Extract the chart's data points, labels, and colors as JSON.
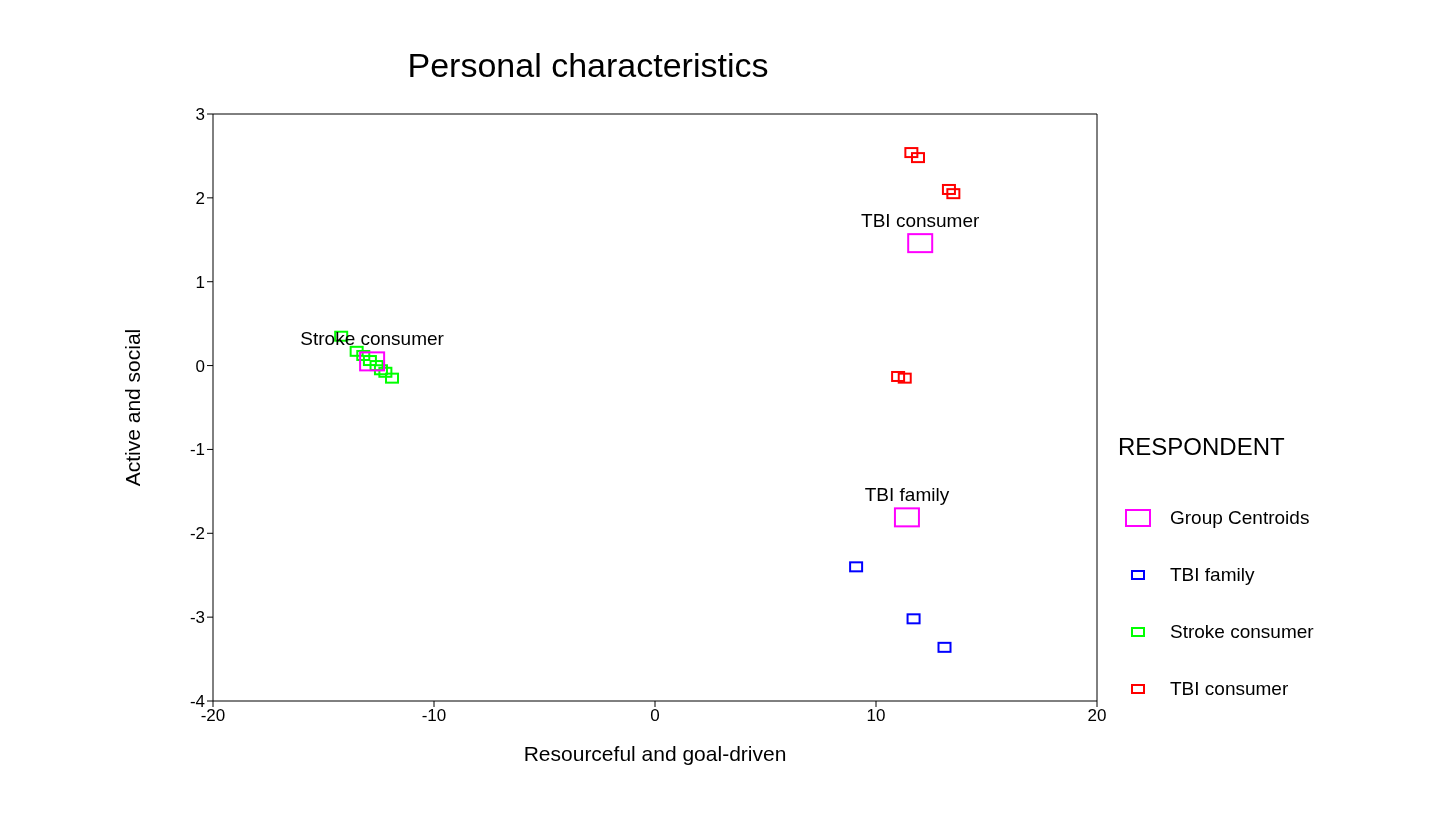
{
  "chart_data": {
    "type": "scatter",
    "title": "Personal characteristics",
    "xlabel": "Resourceful and goal-driven",
    "ylabel": "Active and social",
    "legend_title": "RESPONDENT",
    "legend": "right",
    "grid": false,
    "marker": "square",
    "xlim": [
      -20,
      20
    ],
    "xticks": [
      -20,
      -10,
      0,
      10,
      20
    ],
    "ylim": [
      -4,
      3
    ],
    "yticks": [
      -4,
      -3,
      -2,
      -1,
      0,
      1,
      2,
      3
    ],
    "series": [
      {
        "name": "Group Centroids",
        "color": "#ff00ff",
        "x": [
          -12.8,
          12.0,
          11.4
        ],
        "values": [
          0.05,
          1.46,
          -1.81
        ]
      },
      {
        "name": "TBI family",
        "color": "#0000ff",
        "x": [
          9.1,
          11.7,
          13.1
        ],
        "values": [
          -2.4,
          -3.02,
          -3.36
        ]
      },
      {
        "name": "Stroke consumer",
        "color": "#00ff00",
        "x": [
          -14.2,
          -13.5,
          -13.2,
          -12.9,
          -12.6,
          -12.4,
          -12.2,
          -11.9
        ],
        "values": [
          0.35,
          0.17,
          0.12,
          0.06,
          0.0,
          -0.05,
          -0.08,
          -0.15
        ]
      },
      {
        "name": "TBI consumer",
        "color": "#ff0000",
        "x": [
          11.6,
          11.9,
          13.3,
          13.5,
          11.0,
          11.3
        ],
        "values": [
          2.54,
          2.48,
          2.1,
          2.05,
          -0.13,
          -0.15
        ]
      }
    ],
    "annotations": [
      {
        "text": "Stroke consumer",
        "x": -12.8,
        "y": 0.05
      },
      {
        "text": "TBI consumer",
        "x": 12.0,
        "y": 1.46
      },
      {
        "text": "TBI family",
        "x": 11.4,
        "y": -1.81
      }
    ]
  }
}
